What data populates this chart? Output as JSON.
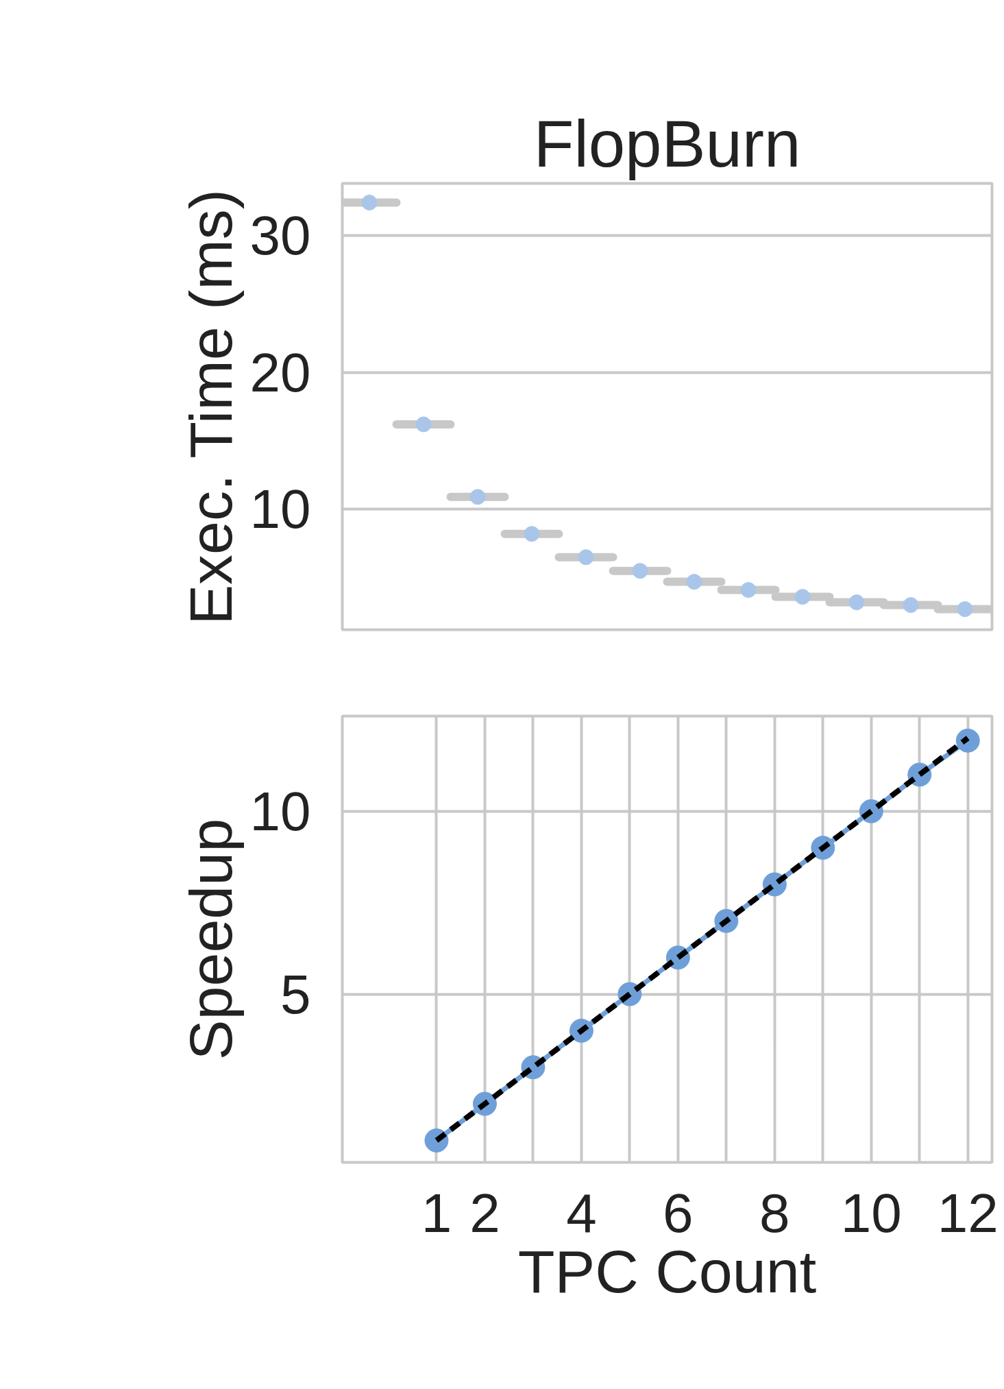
{
  "chart_data": [
    {
      "type": "box",
      "title": "FlopBurn",
      "ylabel": "Exec. Time (ms)",
      "categories": [
        null,
        null,
        null,
        null,
        null,
        null,
        null,
        null,
        null,
        null,
        null,
        null
      ],
      "ylim": [
        1.2,
        33.8
      ],
      "yticks": [
        10,
        20,
        30
      ],
      "grid": "y",
      "series": [
        {
          "color": "#c8c8c8",
          "boxes": [
            {
              "low": 32.4,
              "q1": 32.4,
              "median": 32.4,
              "q3": 32.4,
              "high": 32.4
            },
            {
              "low": 16.2,
              "q1": 16.2,
              "median": 16.2,
              "q3": 16.2,
              "high": 16.2
            },
            {
              "low": 10.9,
              "q1": 10.9,
              "median": 10.9,
              "q3": 10.9,
              "high": 10.9
            },
            {
              "low": 8.2,
              "q1": 8.2,
              "median": 8.2,
              "q3": 8.2,
              "high": 8.2
            },
            {
              "low": 6.5,
              "q1": 6.5,
              "median": 6.5,
              "q3": 6.5,
              "high": 6.5
            },
            {
              "low": 5.5,
              "q1": 5.5,
              "median": 5.5,
              "q3": 5.5,
              "high": 5.5
            },
            {
              "low": 4.7,
              "q1": 4.7,
              "median": 4.7,
              "q3": 4.7,
              "high": 4.7
            },
            {
              "low": 4.1,
              "q1": 4.1,
              "median": 4.1,
              "q3": 4.1,
              "high": 4.1
            },
            {
              "low": 3.6,
              "q1": 3.6,
              "median": 3.6,
              "q3": 3.6,
              "high": 3.6
            },
            {
              "low": 3.2,
              "q1": 3.2,
              "median": 3.2,
              "q3": 3.2,
              "high": 3.2
            },
            {
              "low": 3.0,
              "q1": 3.0,
              "median": 3.0,
              "q3": 3.0,
              "high": 3.0
            },
            {
              "low": 2.7,
              "q1": 2.7,
              "median": 2.7,
              "q3": 2.7,
              "high": 2.7
            }
          ]
        },
        {
          "type": "scatter",
          "color": "#a9c6ea",
          "marker": "circle",
          "values": [
            32.4,
            16.2,
            10.9,
            8.2,
            6.5,
            5.5,
            4.7,
            4.1,
            3.6,
            3.2,
            3.0,
            2.7
          ]
        }
      ]
    },
    {
      "type": "line",
      "xlabel": "TPC Count",
      "ylabel": "Speedup",
      "x": [
        1,
        2,
        3,
        4,
        5,
        6,
        7,
        8,
        9,
        10,
        11,
        12
      ],
      "xlim": [
        -0.95,
        12.5
      ],
      "ylim": [
        0.4,
        12.6
      ],
      "xticks": [
        1,
        2,
        {
          "value": 3,
          "label": null
        },
        4,
        {
          "value": 5,
          "label": null
        },
        6,
        {
          "value": 7,
          "label": null
        },
        8,
        {
          "value": 9,
          "label": null
        },
        10,
        {
          "value": 11,
          "label": null
        },
        12
      ],
      "yticks": [
        5,
        10
      ],
      "grid": true,
      "series": [
        {
          "color": "#6f9fd8",
          "marker": "circle",
          "line_style": "solid",
          "values": [
            1,
            2,
            3,
            4,
            5,
            6,
            7,
            8,
            9,
            10,
            11,
            11.93
          ]
        },
        {
          "color": "#000000",
          "marker": "none",
          "line_style": "dashed",
          "values": [
            1,
            2,
            3,
            4,
            5,
            6,
            7,
            8,
            9,
            10,
            11,
            12
          ]
        }
      ]
    }
  ]
}
